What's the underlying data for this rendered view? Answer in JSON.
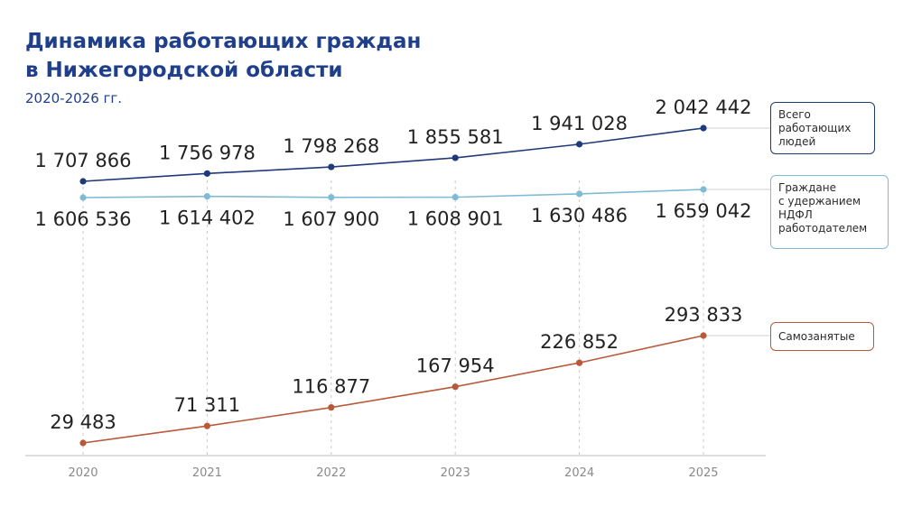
{
  "chart_data": {
    "type": "line",
    "title_line1": "Динамика работающих граждан",
    "title_line2": "в Нижегородской области",
    "subtitle": "2020-2026 гг.",
    "categories": [
      "2020",
      "2021",
      "2022",
      "2023",
      "2024",
      "2025"
    ],
    "series": [
      {
        "name_lines": [
          "Всего",
          "работающих",
          "людей"
        ],
        "color": "#1f3a7a",
        "values": [
          1707866,
          1756978,
          1798268,
          1855581,
          1941028,
          2042442
        ],
        "labels": [
          "1 707 866",
          "1 756 978",
          "1 798 268",
          "1 855 581",
          "1 941 028",
          "2 042 442"
        ]
      },
      {
        "name_lines": [
          "Граждане",
          "с удержанием",
          "НДФЛ",
          "работодателем"
        ],
        "color": "#7fbbd4",
        "values": [
          1606536,
          1614402,
          1607900,
          1608901,
          1630486,
          1659042
        ],
        "labels": [
          "1 606 536",
          "1 614 402",
          "1 607 900",
          "1 608 901",
          "1 630 486",
          "1 659 042"
        ]
      },
      {
        "name_lines": [
          "Самозанятые"
        ],
        "color": "#b8593a",
        "values": [
          29483,
          71311,
          116877,
          167954,
          226852,
          293833
        ],
        "labels": [
          "29 483",
          "71 311",
          "116 877",
          "167 954",
          "226 852",
          "293 833"
        ]
      }
    ],
    "grid": "vertical-dashed",
    "legend": "right"
  }
}
